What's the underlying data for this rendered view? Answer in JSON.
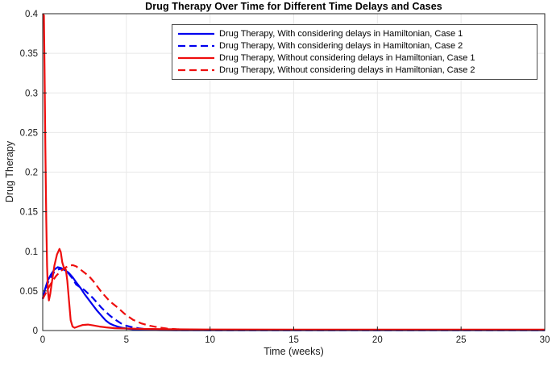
{
  "figure": {
    "title": "Drug Therapy Over Time for Different Time Delays and Cases",
    "xlabel": "Time (weeks)",
    "ylabel": "Drug Therapy"
  },
  "chart_data": {
    "type": "line",
    "title": "Drug Therapy Over Time for Different Time Delays and Cases",
    "xlabel": "Time (weeks)",
    "ylabel": "Drug Therapy",
    "xlim": [
      0,
      30
    ],
    "ylim": [
      0,
      0.4
    ],
    "xtick_labels": [
      "0",
      "5",
      "10",
      "15",
      "20",
      "25",
      "30"
    ],
    "ytick_labels": [
      "0",
      "0.05",
      "0.1",
      "0.15",
      "0.2",
      "0.25",
      "0.3",
      "0.35",
      "0.4"
    ],
    "grid": true,
    "grid_color": "#e8e8e8",
    "axis_color": "#262626",
    "legend_position": "inside top center-right",
    "series": [
      {
        "name": "Drug Therapy, With considering delays in Hamiltonian, Case 1",
        "color": "#0000ee",
        "style": "solid",
        "x": [
          0,
          0.15,
          0.3,
          0.5,
          0.7,
          0.9,
          1.1,
          1.3,
          1.55,
          1.8,
          2.0,
          2.25,
          2.5,
          2.75,
          3.0,
          3.25,
          3.5,
          3.75,
          4.0,
          4.25,
          4.5,
          4.75,
          5.0,
          5.5,
          6.0,
          6.5,
          7.0,
          8.0,
          10,
          15,
          20,
          25,
          30
        ],
        "y": [
          0.04,
          0.053,
          0.063,
          0.071,
          0.077,
          0.08,
          0.079,
          0.0765,
          0.073,
          0.067,
          0.061,
          0.054,
          0.046,
          0.039,
          0.032,
          0.025,
          0.019,
          0.013,
          0.009,
          0.0065,
          0.0048,
          0.0035,
          0.0025,
          0.0014,
          0.0009,
          0.0007,
          0.0005,
          0.0004,
          0.0003,
          0.0003,
          0.0003,
          0.0003,
          0.0003
        ]
      },
      {
        "name": "Drug Therapy, With considering delays in Hamiltonian, Case 2",
        "color": "#0000ee",
        "style": "dashed",
        "x": [
          0,
          0.15,
          0.3,
          0.5,
          0.7,
          0.9,
          1.1,
          1.3,
          1.55,
          1.8,
          2.0,
          2.25,
          2.5,
          2.75,
          3.0,
          3.25,
          3.5,
          3.75,
          4.0,
          4.25,
          4.5,
          4.75,
          5.0,
          5.4,
          5.8,
          6.2,
          6.6,
          7.0,
          8.0,
          10,
          15,
          20,
          25,
          30
        ],
        "y": [
          0.04,
          0.051,
          0.06,
          0.068,
          0.074,
          0.077,
          0.078,
          0.0765,
          0.072,
          0.065,
          0.058,
          0.0545,
          0.051,
          0.046,
          0.041,
          0.035,
          0.029,
          0.024,
          0.019,
          0.015,
          0.0115,
          0.008,
          0.006,
          0.004,
          0.0026,
          0.0017,
          0.0011,
          0.0008,
          0.0005,
          0.0004,
          0.0004,
          0.0004,
          0.0004,
          0.0004
        ]
      },
      {
        "name": "Drug Therapy, Without considering delays in Hamiltonian, Case 1",
        "color": "#ee0e0e",
        "style": "solid",
        "x": [
          0,
          0.07,
          0.11,
          0.16,
          0.21,
          0.26,
          0.31,
          0.37,
          0.45,
          0.55,
          0.7,
          0.85,
          1.0,
          1.08,
          1.17,
          1.27,
          1.38,
          1.47,
          1.57,
          1.67,
          1.78,
          1.9,
          2.1,
          2.4,
          2.7,
          3.0,
          3.4,
          3.8,
          4.3,
          5.0,
          6.0,
          8.0,
          10,
          15,
          20,
          25,
          30
        ],
        "y": [
          0.4,
          0.398,
          0.33,
          0.23,
          0.14,
          0.082,
          0.05,
          0.038,
          0.046,
          0.061,
          0.082,
          0.096,
          0.103,
          0.099,
          0.086,
          0.079,
          0.077,
          0.063,
          0.038,
          0.013,
          0.005,
          0.0035,
          0.005,
          0.007,
          0.0075,
          0.0065,
          0.005,
          0.004,
          0.003,
          0.0025,
          0.002,
          0.0015,
          0.0013,
          0.0012,
          0.0012,
          0.0012,
          0.0012
        ]
      },
      {
        "name": "Drug Therapy, Without considering delays in Hamiltonian, Case 2",
        "color": "#ee0e0e",
        "style": "dashed",
        "x": [
          0,
          0.2,
          0.4,
          0.6,
          0.8,
          1.0,
          1.2,
          1.4,
          1.6,
          1.8,
          2.0,
          2.2,
          2.5,
          2.75,
          3.0,
          3.25,
          3.5,
          3.75,
          4.0,
          4.45,
          4.9,
          5.4,
          5.9,
          6.4,
          6.9,
          7.4,
          8.0,
          9.0,
          10,
          15,
          20,
          25,
          30
        ],
        "y": [
          0.04,
          0.048,
          0.056,
          0.063,
          0.069,
          0.0735,
          0.077,
          0.08,
          0.082,
          0.0825,
          0.081,
          0.078,
          0.073,
          0.069,
          0.063,
          0.056,
          0.049,
          0.043,
          0.037,
          0.0295,
          0.021,
          0.0135,
          0.009,
          0.006,
          0.004,
          0.0025,
          0.0016,
          0.001,
          0.0008,
          0.0006,
          0.0006,
          0.0006,
          0.0006
        ]
      }
    ]
  }
}
